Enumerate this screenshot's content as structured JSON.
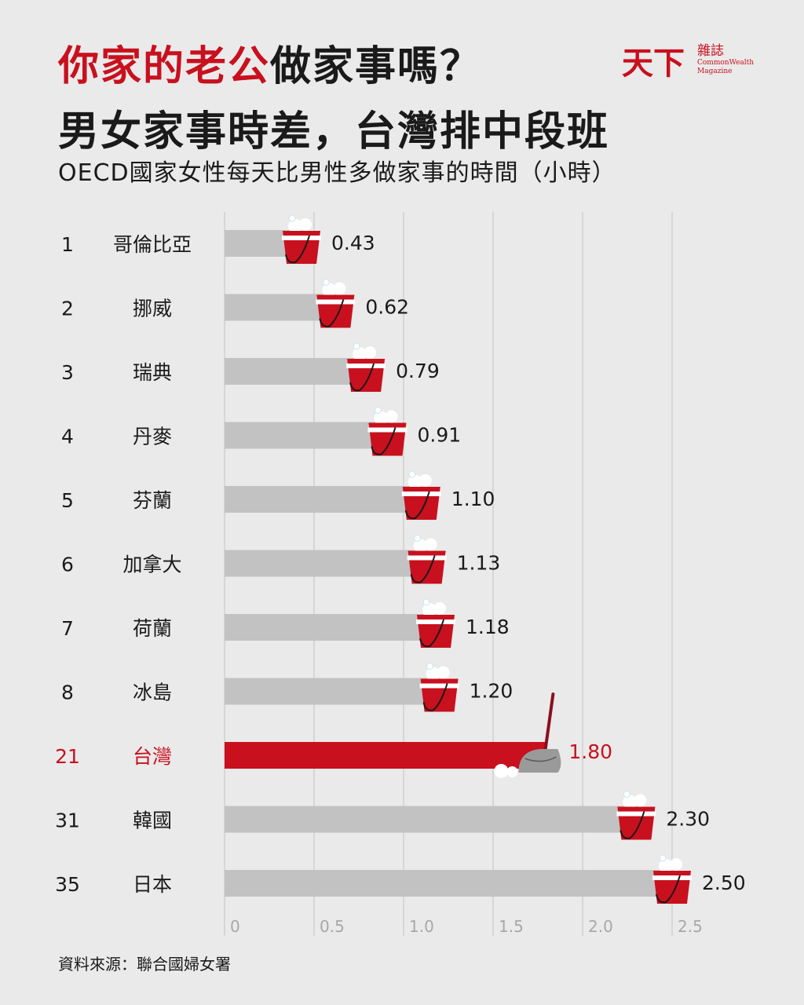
{
  "title": {
    "line1_accent": "你家的老公",
    "line1_rest": "做家事嗎？",
    "line2": "男女家事時差，台灣排中段班"
  },
  "subtitle": "OECD國家女性每天比男性多做家事的時間（小時）",
  "logo": {
    "main": "天下",
    "sub": "雜誌",
    "en1": "CommonWealth",
    "en2": "Magazine"
  },
  "source": "資料來源：聯合國婦女署",
  "colors": {
    "accent": "#c8101e",
    "bar": "#c2c2c2",
    "highlight": "#c8101e",
    "grid": "#cfcfcf"
  },
  "chart_data": {
    "type": "bar",
    "orientation": "horizontal",
    "xlim": [
      0,
      2.5
    ],
    "xticks": [
      "0",
      "0.5",
      "1.0",
      "1.5",
      "2.0",
      "2.5"
    ],
    "grid": true,
    "categories": [
      "哥倫比亞",
      "挪威",
      "瑞典",
      "丹麥",
      "芬蘭",
      "加拿大",
      "荷蘭",
      "冰島",
      "台灣",
      "韓國",
      "日本"
    ],
    "ranks": [
      "1",
      "2",
      "3",
      "4",
      "5",
      "6",
      "7",
      "8",
      "21",
      "31",
      "35"
    ],
    "values": [
      0.43,
      0.62,
      0.79,
      0.91,
      1.1,
      1.13,
      1.18,
      1.2,
      1.8,
      2.3,
      2.5
    ],
    "value_labels": [
      "0.43",
      "0.62",
      "0.79",
      "0.91",
      "1.10",
      "1.13",
      "1.18",
      "1.20",
      "1.80",
      "2.30",
      "2.50"
    ],
    "highlight": "台灣",
    "marker_icon": "bucket-icon",
    "highlight_icon": "mop-icon"
  }
}
